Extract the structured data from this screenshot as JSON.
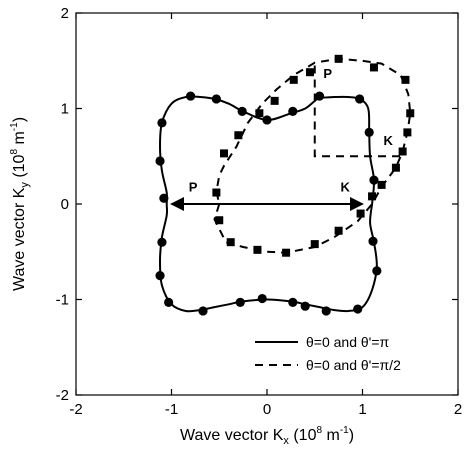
{
  "chart_data": {
    "type": "line",
    "xlabel": {
      "main": "Wave vector K",
      "sub": "x",
      "unit_pre": " (10",
      "unit_sup1": "8",
      "unit_mid": " m",
      "unit_sup2": "-1",
      "unit_post": ")"
    },
    "ylabel": {
      "main": "Wave vector K",
      "sub": "y",
      "unit_pre": " (10",
      "unit_sup1": "8",
      "unit_mid": " m",
      "unit_sup2": "-1",
      "unit_post": ")"
    },
    "xlim": [
      -2,
      2
    ],
    "ylim": [
      -2,
      2
    ],
    "xticks": [
      -2,
      -1,
      0,
      1,
      2
    ],
    "yticks": [
      -2,
      -1,
      0,
      1,
      2
    ],
    "xtick_labels": [
      "-2",
      "-1",
      "0",
      "1",
      "2"
    ],
    "ytick_labels": [
      "-2",
      "-1",
      "0",
      "1",
      "2"
    ],
    "grid": false,
    "legend_position": "bottom-right",
    "series": [
      {
        "name": "θ=0 and θ'=π",
        "line_style": "solid",
        "marker": "circle",
        "curve": [
          [
            1.1,
            0.0
          ],
          [
            1.12,
            0.25
          ],
          [
            1.08,
            0.5
          ],
          [
            1.07,
            0.75
          ],
          [
            1.06,
            1.0
          ],
          [
            0.97,
            1.1
          ],
          [
            0.85,
            1.12
          ],
          [
            0.7,
            1.12
          ],
          [
            0.55,
            1.11
          ],
          [
            0.5,
            1.08
          ],
          [
            0.4,
            1.0
          ],
          [
            0.25,
            0.95
          ],
          [
            0.0,
            0.88
          ],
          [
            -0.25,
            0.97
          ],
          [
            -0.4,
            1.05
          ],
          [
            -0.55,
            1.1
          ],
          [
            -0.7,
            1.12
          ],
          [
            -0.85,
            1.12
          ],
          [
            -1.0,
            1.05
          ],
          [
            -1.1,
            0.85
          ],
          [
            -1.12,
            0.6
          ],
          [
            -1.1,
            0.35
          ],
          [
            -1.05,
            0.12
          ],
          [
            -1.05,
            0.0
          ],
          [
            -1.05,
            -0.12
          ],
          [
            -1.1,
            -0.35
          ],
          [
            -1.12,
            -0.6
          ],
          [
            -1.1,
            -0.85
          ],
          [
            -1.0,
            -1.05
          ],
          [
            -0.85,
            -1.12
          ],
          [
            -0.7,
            -1.11
          ],
          [
            -0.55,
            -1.08
          ],
          [
            -0.4,
            -1.05
          ],
          [
            -0.25,
            -1.02
          ],
          [
            0.0,
            -1.0
          ],
          [
            0.25,
            -1.02
          ],
          [
            0.4,
            -1.05
          ],
          [
            0.55,
            -1.08
          ],
          [
            0.7,
            -1.11
          ],
          [
            0.85,
            -1.12
          ],
          [
            1.0,
            -1.08
          ],
          [
            1.1,
            -0.9
          ],
          [
            1.15,
            -0.65
          ],
          [
            1.12,
            -0.4
          ],
          [
            1.08,
            -0.2
          ],
          [
            1.1,
            0.0
          ]
        ],
        "markers": [
          [
            1.12,
            0.25
          ],
          [
            1.07,
            0.75
          ],
          [
            0.97,
            1.1
          ],
          [
            0.55,
            1.13
          ],
          [
            0.27,
            0.97
          ],
          [
            0.0,
            0.88
          ],
          [
            -0.26,
            0.97
          ],
          [
            -0.53,
            1.1
          ],
          [
            -0.8,
            1.13
          ],
          [
            -1.1,
            0.85
          ],
          [
            -1.12,
            0.45
          ],
          [
            -1.08,
            0.06
          ],
          [
            -1.1,
            -0.4
          ],
          [
            -1.12,
            -0.75
          ],
          [
            -1.03,
            -1.03
          ],
          [
            -0.67,
            -1.12
          ],
          [
            -0.28,
            -1.03
          ],
          [
            -0.05,
            -0.99
          ],
          [
            0.27,
            -1.03
          ],
          [
            0.4,
            -1.07
          ],
          [
            0.62,
            -1.12
          ],
          [
            0.95,
            -1.1
          ],
          [
            1.15,
            -0.7
          ],
          [
            1.11,
            -0.39
          ]
        ]
      },
      {
        "name": "θ=0 and θ'=π/2",
        "line_style": "dashed",
        "marker": "square",
        "curve": [
          [
            -0.5,
            0.0
          ],
          [
            -0.55,
            -0.16
          ],
          [
            -0.43,
            -0.4
          ],
          [
            -0.25,
            -0.45
          ],
          [
            0.0,
            -0.5
          ],
          [
            0.2,
            -0.51
          ],
          [
            0.5,
            -0.45
          ],
          [
            0.7,
            -0.35
          ],
          [
            0.95,
            -0.18
          ],
          [
            1.1,
            0.0
          ],
          [
            1.2,
            0.18
          ],
          [
            1.35,
            0.38
          ],
          [
            1.42,
            0.55
          ],
          [
            1.47,
            0.75
          ],
          [
            1.5,
            0.95
          ],
          [
            1.48,
            1.15
          ],
          [
            1.4,
            1.35
          ],
          [
            1.2,
            1.47
          ],
          [
            1.0,
            1.5
          ],
          [
            0.75,
            1.52
          ],
          [
            0.5,
            1.48
          ],
          [
            0.28,
            1.35
          ],
          [
            0.1,
            1.2
          ],
          [
            -0.05,
            1.05
          ],
          [
            -0.2,
            0.85
          ],
          [
            -0.32,
            0.6
          ],
          [
            -0.45,
            0.4
          ],
          [
            -0.5,
            0.3
          ],
          [
            -0.53,
            0.13
          ],
          [
            -0.5,
            0.0
          ]
        ],
        "markers": [
          [
            -0.5,
            -0.17
          ],
          [
            -0.38,
            -0.4
          ],
          [
            -0.1,
            -0.48
          ],
          [
            0.2,
            -0.51
          ],
          [
            0.5,
            -0.42
          ],
          [
            0.75,
            -0.28
          ],
          [
            0.98,
            -0.1
          ],
          [
            1.1,
            0.08
          ],
          [
            1.2,
            0.2
          ],
          [
            1.35,
            0.38
          ],
          [
            1.42,
            0.55
          ],
          [
            1.47,
            0.75
          ],
          [
            1.5,
            0.95
          ],
          [
            1.45,
            1.3
          ],
          [
            1.12,
            1.43
          ],
          [
            0.75,
            1.52
          ],
          [
            0.45,
            1.38
          ],
          [
            0.28,
            1.3
          ],
          [
            0.08,
            1.08
          ],
          [
            -0.08,
            0.95
          ],
          [
            -0.3,
            0.72
          ],
          [
            -0.45,
            0.53
          ],
          [
            -0.53,
            0.12
          ]
        ]
      }
    ],
    "annotations": {
      "arrow_P_label": "P",
      "arrow_K_label": "K",
      "dashed_P_label": "P",
      "dashed_K_label": "K"
    },
    "double_arrow": {
      "from": [
        -1.0,
        0.0
      ],
      "to": [
        1.0,
        0.0
      ]
    },
    "dashed_corner": {
      "top": [
        0.5,
        1.45
      ],
      "corner": [
        0.5,
        0.5
      ],
      "right": [
        1.45,
        0.5
      ]
    },
    "label_positions": {
      "arrow_P": [
        -0.82,
        0.13
      ],
      "arrow_K": [
        0.77,
        0.13
      ],
      "dashed_P": [
        0.59,
        1.32
      ],
      "dashed_K": [
        1.22,
        0.62
      ]
    }
  }
}
